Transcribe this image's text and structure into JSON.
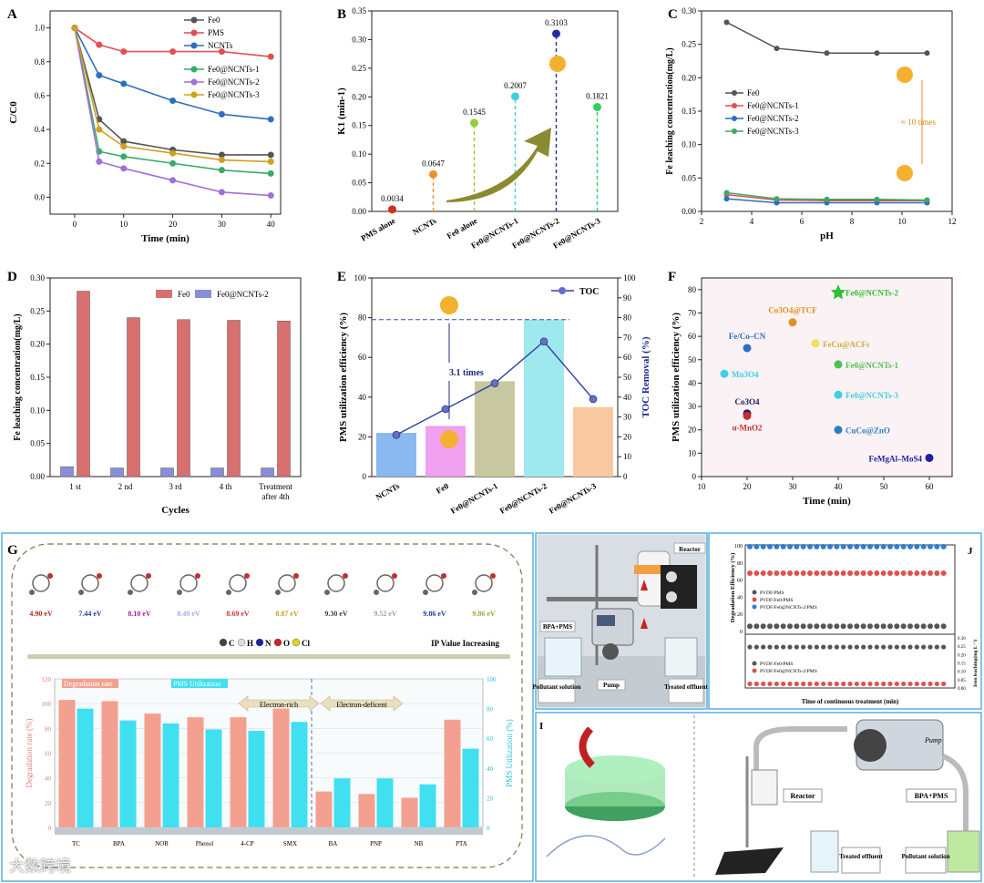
{
  "panels": {
    "A": {
      "label": "A",
      "title": ""
    },
    "B": {
      "label": "B"
    },
    "C": {
      "label": "C"
    },
    "D": {
      "label": "D"
    },
    "E": {
      "label": "E",
      "annotation": "3.1 times"
    },
    "F": {
      "label": "F"
    },
    "G": {
      "label": "G"
    },
    "H": {
      "label": "H"
    },
    "I": {
      "label": "I"
    },
    "J": {
      "label": "J"
    }
  },
  "chart_data": [
    {
      "panel": "A",
      "type": "line",
      "xlabel": "Time (min)",
      "ylabel": "C/C0",
      "xlim": [
        -5,
        42
      ],
      "ylim": [
        -0.1,
        1.1
      ],
      "xticks": [
        0,
        10,
        20,
        30,
        40
      ],
      "yticks": [
        0.0,
        0.2,
        0.4,
        0.6,
        0.8,
        1.0
      ],
      "x": [
        0,
        5,
        10,
        20,
        30,
        40
      ],
      "series": [
        {
          "name": "Fe0",
          "color": "#555555",
          "values": [
            1.0,
            0.46,
            0.33,
            0.28,
            0.25,
            0.25
          ]
        },
        {
          "name": "PMS",
          "color": "#e05050",
          "values": [
            1.0,
            0.9,
            0.86,
            0.86,
            0.86,
            0.83
          ]
        },
        {
          "name": "NCNTs",
          "color": "#2e6fbd",
          "values": [
            1.0,
            0.72,
            0.67,
            0.57,
            0.49,
            0.46
          ]
        },
        {
          "name": "Fe0@NCNTs-1",
          "color": "#3aaa6a",
          "values": [
            1.0,
            0.27,
            0.24,
            0.2,
            0.16,
            0.14
          ]
        },
        {
          "name": "Fe0@NCNTs-2",
          "color": "#a070d8",
          "values": [
            1.0,
            0.21,
            0.17,
            0.1,
            0.03,
            0.01
          ]
        },
        {
          "name": "Fe0@NCNTs-3",
          "color": "#d0a020",
          "values": [
            1.0,
            0.4,
            0.3,
            0.26,
            0.22,
            0.21
          ]
        }
      ]
    },
    {
      "panel": "B",
      "type": "scatter",
      "ylabel": "K1 (min-1)",
      "ylim": [
        0,
        0.35
      ],
      "yticks": [
        0.0,
        0.05,
        0.1,
        0.15,
        0.2,
        0.25,
        0.3,
        0.35
      ],
      "categories": [
        "PMS alone",
        "NCNTs",
        "Fe0 alone",
        "Fe0@NCNTs-1",
        "Fe0@NCNTs-2",
        "Fe0@NCNTs-3"
      ],
      "values": [
        0.0034,
        0.0647,
        0.1545,
        0.2007,
        0.3103,
        0.1821
      ],
      "value_labels": [
        "0.0034",
        "0.0647",
        "0.1545",
        "0.2007",
        "0.3103",
        "0.1821"
      ],
      "colors": [
        "#d03020",
        "#f0902a",
        "#90d030",
        "#40d0e0",
        "#2030a0",
        "#30d060"
      ]
    },
    {
      "panel": "C",
      "type": "line",
      "xlabel": "pH",
      "ylabel": "Fe leaching concentration(mg/L)",
      "xlim": [
        2,
        12
      ],
      "ylim": [
        0,
        0.3
      ],
      "xticks": [
        2,
        4,
        6,
        8,
        10,
        12
      ],
      "yticks": [
        0.0,
        0.05,
        0.1,
        0.15,
        0.2,
        0.25,
        0.3
      ],
      "x": [
        3,
        5,
        7,
        9,
        11
      ],
      "series": [
        {
          "name": "Fe0",
          "color": "#555555",
          "values": [
            0.283,
            0.244,
            0.237,
            0.237,
            0.237
          ]
        },
        {
          "name": "Fe0@NCNTs-1",
          "color": "#e05050",
          "values": [
            0.025,
            0.017,
            0.016,
            0.016,
            0.016
          ]
        },
        {
          "name": "Fe0@NCNTs-2",
          "color": "#2e6fbd",
          "values": [
            0.019,
            0.013,
            0.013,
            0.013,
            0.013
          ]
        },
        {
          "name": "Fe0@NCNTs-3",
          "color": "#3aaa6a",
          "values": [
            0.028,
            0.019,
            0.018,
            0.018,
            0.017
          ]
        }
      ],
      "annotation": "≈ 10 times"
    },
    {
      "panel": "D",
      "type": "bar",
      "xlabel": "Cycles",
      "ylabel": "Fe leaching concentration(mg/L)",
      "ylim": [
        0,
        0.3
      ],
      "yticks": [
        0.0,
        0.05,
        0.1,
        0.15,
        0.2,
        0.25,
        0.3
      ],
      "categories": [
        "1 st",
        "2 nd",
        "3 rd",
        "4 th",
        "Treatment after 4th"
      ],
      "series": [
        {
          "name": "Fe0@NCNTs-2",
          "color": "#8a8ed8",
          "values": [
            0.015,
            0.013,
            0.013,
            0.013,
            0.013
          ]
        },
        {
          "name": "Fe0",
          "color": "#d87070",
          "values": [
            0.28,
            0.24,
            0.237,
            0.236,
            0.235
          ]
        }
      ]
    },
    {
      "panel": "E",
      "type": "bar",
      "ylabel": "PMS utilization efficiency (%)",
      "y2label": "TOC Removal (%)",
      "ylim": [
        0,
        100
      ],
      "y2lim": [
        0,
        100
      ],
      "yticks": [
        0,
        20,
        40,
        60,
        80,
        100
      ],
      "y2ticks": [
        0,
        10,
        20,
        30,
        40,
        50,
        60,
        70,
        80,
        90,
        100
      ],
      "categories": [
        "NCNTs",
        "Fe0",
        "Fe0@NCNTs-1",
        "Fe0@NCNTs-2",
        "Fe0@NCNTs-3"
      ],
      "values": [
        22,
        25.5,
        48,
        79,
        35
      ],
      "colors": [
        "#8ab8f0",
        "#f0a0f0",
        "#c8c8a0",
        "#a0e8f0",
        "#f8c8a0"
      ],
      "toc_name": "TOC",
      "toc_values": [
        21,
        34,
        47,
        68,
        39
      ]
    },
    {
      "panel": "F",
      "type": "scatter",
      "xlabel": "Time (min)",
      "ylabel": "PMS utilization efficiency (%)",
      "xlim": [
        10,
        65
      ],
      "ylim": [
        0,
        85
      ],
      "xticks": [
        10,
        20,
        30,
        40,
        50,
        60
      ],
      "yticks": [
        0,
        10,
        20,
        30,
        40,
        50,
        60,
        70,
        80
      ],
      "points": [
        {
          "label": "Fe0@NCNTs-2",
          "x": 40,
          "y": 79,
          "color": "#30c030"
        },
        {
          "label": "Co3O4@TCF",
          "x": 30,
          "y": 66,
          "color": "#e09020"
        },
        {
          "label": "FeCu@ACFs",
          "x": 35,
          "y": 57,
          "color": "#f0e060"
        },
        {
          "label": "Fe/Co–CN",
          "x": 20,
          "y": 55,
          "color": "#2e6fbd"
        },
        {
          "label": "Fe0@NCNTs-1",
          "x": 40,
          "y": 48,
          "color": "#50c050"
        },
        {
          "label": "Mn3O4",
          "x": 15,
          "y": 44,
          "color": "#40d0e0"
        },
        {
          "label": "Fe0@NCNTs-3",
          "x": 40,
          "y": 35,
          "color": "#40d0e0"
        },
        {
          "label": "Co3O4",
          "x": 20,
          "y": 27,
          "color": "#202060"
        },
        {
          "label": "α-MnO2",
          "x": 20,
          "y": 26,
          "color": "#c03030"
        },
        {
          "label": "CuCo@ZnO",
          "x": 40,
          "y": 20,
          "color": "#2e7fc0"
        },
        {
          "label": "FeMgAl–MoS4",
          "x": 60,
          "y": 8,
          "color": "#2020a0"
        }
      ]
    },
    {
      "panel": "G",
      "type": "bar",
      "ylabel": "Degradation rate (%)",
      "y2label": "PMS Utilization (%)",
      "ylim": [
        0,
        120
      ],
      "yticks": [
        0,
        20,
        40,
        60,
        80,
        100,
        120
      ],
      "y2lim": [
        0,
        100
      ],
      "y2ticks": [
        0,
        20,
        40,
        60,
        80,
        100
      ],
      "categories": [
        "TC",
        "BPA",
        "NOR",
        "Phenol",
        "4-CP",
        "SMX",
        "BA",
        "PNP",
        "NB",
        "PTA"
      ],
      "series": [
        {
          "name": "Degradation rate",
          "color": "#f4a090",
          "values": [
            103,
            102,
            92,
            89,
            89,
            96,
            29,
            27,
            24,
            87
          ]
        },
        {
          "name": "PMS Utilization",
          "color": "#40e0f0",
          "values": [
            80,
            72,
            70,
            66,
            65,
            71,
            33,
            33,
            29,
            53
          ]
        }
      ],
      "ip_labels": [
        "4.90 eV",
        "7.44 eV",
        "8.10 eV",
        "8.49 eV",
        "8.69 eV",
        "8.87 eV",
        "9.30 eV",
        "9.52 eV",
        "9.86 eV",
        "9.86 eV"
      ],
      "ip_colors": [
        "#c02020",
        "#2040a0",
        "#b02090",
        "#a0b0e0",
        "#d03030",
        "#c8a020",
        "#404040",
        "#a0a0a0",
        "#2040a0",
        "#90b040"
      ],
      "legend_atoms": [
        "C",
        "H",
        "N",
        "O",
        "Cl"
      ],
      "ip_text": "IP Value Increasing",
      "electron_rich": "Electron-rich",
      "electron_deficient": "Electron-deficent"
    },
    {
      "panel": "J",
      "type": "scatter",
      "xlabel": "Time of continuous treatment (min)",
      "ylabel_top": "Degradation Efficiency (%)",
      "ylabel_bottom": "Iron leaching(mg L⁻¹)",
      "xlim": [
        0,
        600
      ],
      "top_ylim": [
        0,
        100
      ],
      "top_yticks": [
        0,
        20,
        40,
        60,
        80,
        100
      ],
      "bottom_ylim": [
        0,
        0.3
      ],
      "bottom_yticks": [
        0.0,
        0.05,
        0.1,
        0.15,
        0.2,
        0.25,
        0.3
      ],
      "top_series": [
        {
          "name": "PVDF/PMS",
          "color": "#555555",
          "value": 5
        },
        {
          "name": "PVDF/Fe0/PMS",
          "color": "#e05050",
          "value": 67
        },
        {
          "name": "PVDF/Fe0@NCNTs-2/PMS",
          "color": "#2e7fd0",
          "value": 98
        }
      ],
      "bottom_series": [
        {
          "name": "PVDF/Fe0/PMS",
          "color": "#555555",
          "value": 0.245
        },
        {
          "name": "PVDF/Fe0@NCNTs-2/PMS",
          "color": "#e05050",
          "value": 0.025
        }
      ],
      "x_points": [
        0,
        20,
        40,
        60,
        80,
        100,
        120,
        140,
        160,
        180,
        200,
        220,
        240,
        260,
        280,
        300,
        320,
        340,
        360,
        380,
        400,
        420,
        440,
        460,
        480,
        500,
        520,
        540,
        560,
        580
      ]
    }
  ],
  "photo_H": {
    "label_reactor": "Reactor",
    "label_feed": "BPA+PMS",
    "label_pollutant": "Pollutant solution",
    "label_pump": "Pump",
    "label_effluent": "Treated effluent"
  },
  "diagram_I": {
    "label_reactor": "Reactor",
    "label_feed": "BPA+PMS",
    "label_pump": "Pump",
    "label_effluent": "Treated effluent",
    "label_pollutant": "Pollutant solution"
  },
  "watermark": "大数跨境"
}
